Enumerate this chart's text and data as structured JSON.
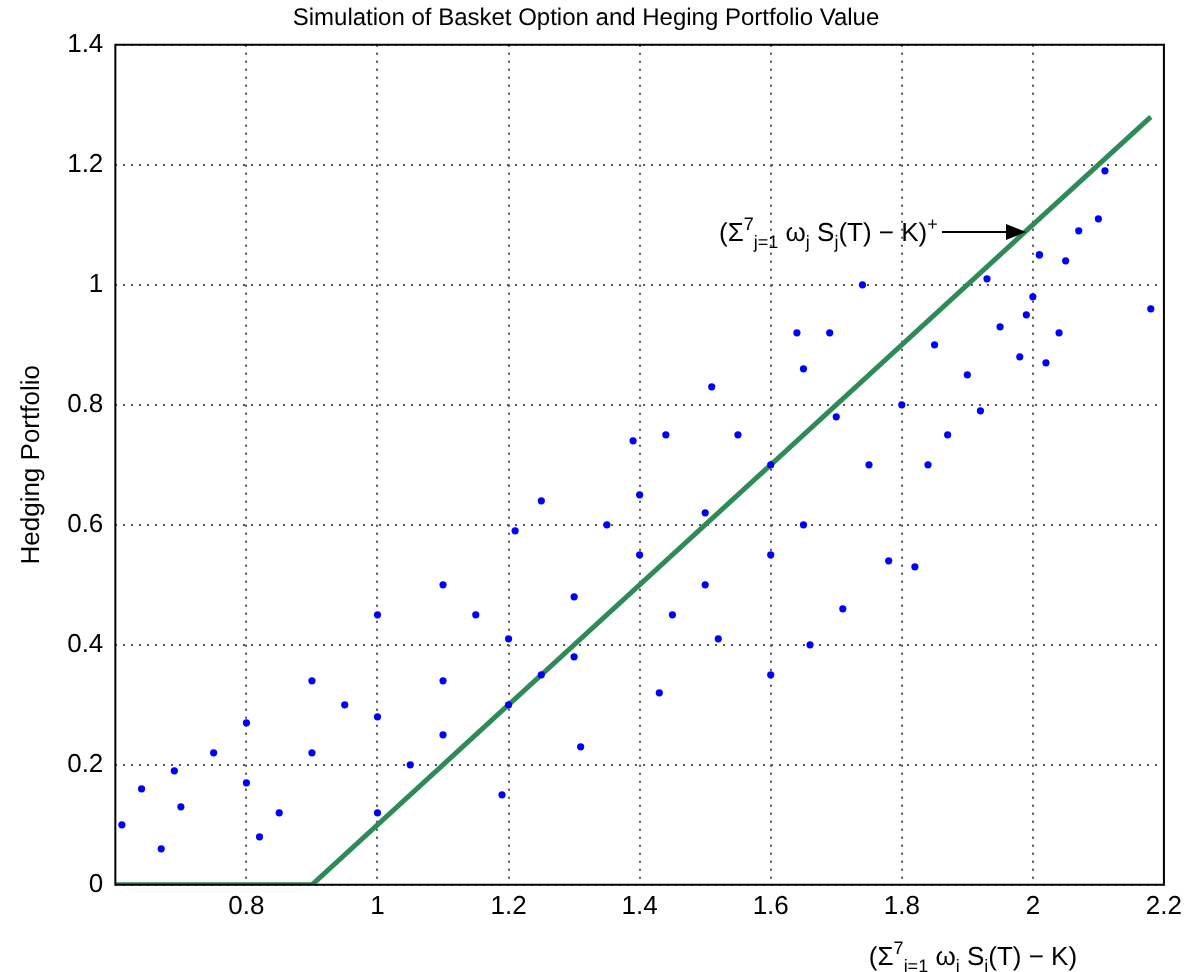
{
  "chart_data": {
    "type": "scatter",
    "title": "Simulation of Basket Option and Heging Portfolio Value",
    "xlabel": "(Σ$^{7}$$_{i=1}$ ω$_{i}$ S$_{i}$(T) − K)",
    "ylabel": "Hedging Portfolio",
    "xlim": [
      0.6,
      2.2
    ],
    "xticks": [
      0.8,
      1,
      1.2,
      1.4,
      1.6,
      1.8,
      2,
      2.2
    ],
    "ylim": [
      0,
      1.4
    ],
    "yticks": [
      0,
      0.2,
      0.4,
      0.6,
      0.8,
      1,
      1.2,
      1.4
    ],
    "grid": true,
    "legend": false,
    "series": [
      {
        "type": "scatter",
        "color": "#0000ff",
        "marker": "circle",
        "x": [
          0.61,
          0.64,
          0.67,
          0.82,
          1.0,
          1.19,
          1.31,
          1.43,
          1.52,
          1.6,
          1.66,
          1.71,
          1.78,
          1.82,
          1.84,
          1.92,
          1.87,
          0.69,
          0.8,
          0.9,
          1.0,
          1.1,
          1.21,
          1.25,
          1.39,
          1.44,
          1.51,
          1.65,
          1.69,
          1.74,
          1.64,
          1.93,
          2.0,
          2.01,
          2.05,
          2.07,
          2.1,
          2.18,
          2.02,
          1.98,
          1.95,
          1.99,
          2.04,
          2.11,
          2.01,
          0.7,
          0.8,
          0.9,
          1.0,
          1.1,
          1.2,
          1.3,
          1.4,
          1.5,
          1.6,
          1.7,
          0.85,
          0.95,
          1.05,
          1.15,
          1.25,
          1.35,
          1.45,
          1.55,
          1.65,
          0.75,
          1.1,
          1.2,
          1.3,
          1.4,
          1.5,
          1.6,
          1.75,
          1.8,
          1.85,
          1.9
        ],
        "values": [
          0.1,
          0.16,
          0.06,
          0.08,
          0.12,
          0.15,
          0.23,
          0.32,
          0.41,
          0.35,
          0.4,
          0.46,
          0.54,
          0.53,
          0.7,
          0.79,
          0.75,
          0.19,
          0.27,
          0.34,
          0.45,
          0.5,
          0.59,
          0.64,
          0.74,
          0.75,
          0.83,
          0.86,
          0.92,
          1.0,
          0.92,
          1.01,
          0.98,
          1.05,
          1.04,
          1.09,
          1.11,
          0.96,
          0.87,
          0.88,
          0.93,
          0.95,
          0.92,
          1.19,
          1.05,
          0.13,
          0.17,
          0.22,
          0.28,
          0.34,
          0.41,
          0.48,
          0.55,
          0.62,
          0.7,
          0.78,
          0.12,
          0.3,
          0.2,
          0.45,
          0.35,
          0.6,
          0.45,
          0.75,
          0.6,
          0.22,
          0.25,
          0.3,
          0.38,
          0.65,
          0.5,
          0.55,
          0.7,
          0.8,
          0.9,
          0.85
        ]
      },
      {
        "type": "line",
        "name": "(Σ$^{7}$$_{j=1}$ ω$_{j}$ S$_{j}$(T) − K)$^{+}$",
        "color": "#2e8b57",
        "marker": "none",
        "line_style": "solid",
        "x": [
          0.6,
          0.9,
          2.18
        ],
        "values": [
          0,
          0,
          1.28
        ]
      }
    ]
  }
}
